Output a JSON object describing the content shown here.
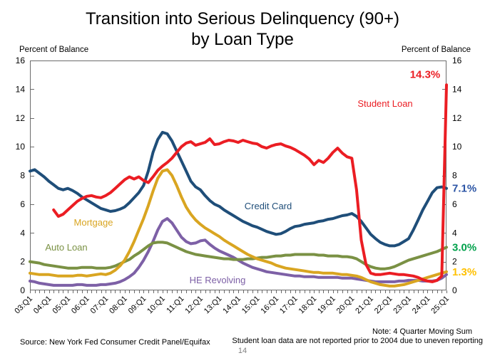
{
  "title": {
    "line1": "Transition into Serious Delinquency (90+)",
    "line2": "by Loan Type"
  },
  "axes": {
    "left_axis_title": "Percent of Balance",
    "right_axis_title": "Percent of Balance",
    "y_ticks": [
      0,
      2,
      4,
      6,
      8,
      10,
      12,
      14,
      16
    ],
    "x_tick_labels": [
      "03:Q1",
      "04:Q1",
      "05:Q1",
      "06:Q1",
      "07:Q1",
      "08:Q1",
      "09:Q1",
      "10:Q1",
      "11:Q1",
      "12:Q1",
      "13:Q1",
      "14:Q1",
      "15:Q1",
      "16:Q1",
      "17:Q1",
      "18:Q1",
      "19:Q1",
      "20:Q1",
      "21:Q1",
      "22:Q1",
      "23:Q1",
      "24:Q1",
      "25:Q1"
    ]
  },
  "chart_data": {
    "type": "line",
    "title": "Transition into Serious Delinquency (90+) by Loan Type",
    "ylabel": "Percent of Balance",
    "ylim": [
      0,
      16
    ],
    "x_start": "2003:Q1",
    "x_end": "2025:Q1",
    "frequency": "quarterly",
    "grid": false,
    "legend": "in-plot labels",
    "series": [
      {
        "name": "HE Revolving",
        "color": "#7d60a6",
        "end_label": null,
        "end_label_color": null,
        "values": [
          0.65,
          0.6,
          0.5,
          0.45,
          0.4,
          0.35,
          0.35,
          0.35,
          0.35,
          0.35,
          0.4,
          0.4,
          0.35,
          0.35,
          0.35,
          0.4,
          0.4,
          0.45,
          0.5,
          0.6,
          0.75,
          0.95,
          1.2,
          1.6,
          2.1,
          2.7,
          3.4,
          4.2,
          4.8,
          5.0,
          4.7,
          4.2,
          3.7,
          3.4,
          3.25,
          3.3,
          3.45,
          3.5,
          3.2,
          2.95,
          2.75,
          2.6,
          2.45,
          2.3,
          2.1,
          1.9,
          1.75,
          1.6,
          1.5,
          1.4,
          1.3,
          1.25,
          1.2,
          1.15,
          1.1,
          1.05,
          1.0,
          1.0,
          0.95,
          0.95,
          0.95,
          0.9,
          0.9,
          0.9,
          0.9,
          0.9,
          0.85,
          0.85,
          0.85,
          0.8,
          0.75,
          0.7,
          0.65,
          0.6,
          0.6,
          0.6,
          0.6,
          0.6,
          0.65,
          0.65,
          0.7,
          0.7,
          0.7,
          0.65,
          0.65,
          0.65,
          0.7,
          0.85,
          1.1
        ]
      },
      {
        "name": "Auto Loan",
        "color": "#7a9144",
        "end_label": "3.0%",
        "end_label_color": "#00a14b",
        "values": [
          2.0,
          1.95,
          1.9,
          1.8,
          1.75,
          1.7,
          1.65,
          1.6,
          1.55,
          1.55,
          1.55,
          1.6,
          1.6,
          1.6,
          1.55,
          1.55,
          1.55,
          1.6,
          1.7,
          1.85,
          2.0,
          2.15,
          2.4,
          2.6,
          2.85,
          3.1,
          3.3,
          3.35,
          3.35,
          3.3,
          3.15,
          3.0,
          2.85,
          2.7,
          2.6,
          2.5,
          2.45,
          2.4,
          2.35,
          2.3,
          2.25,
          2.2,
          2.2,
          2.15,
          2.15,
          2.15,
          2.2,
          2.2,
          2.25,
          2.3,
          2.3,
          2.35,
          2.4,
          2.4,
          2.45,
          2.45,
          2.5,
          2.5,
          2.5,
          2.5,
          2.5,
          2.45,
          2.45,
          2.4,
          2.4,
          2.4,
          2.35,
          2.35,
          2.3,
          2.2,
          2.0,
          1.8,
          1.65,
          1.55,
          1.5,
          1.5,
          1.55,
          1.65,
          1.8,
          1.95,
          2.1,
          2.2,
          2.3,
          2.4,
          2.5,
          2.6,
          2.7,
          2.85,
          3.0
        ]
      },
      {
        "name": "Mortgage",
        "color": "#d9a521",
        "end_label": "1.3%",
        "end_label_color": "#ffc000",
        "values": [
          1.2,
          1.15,
          1.1,
          1.1,
          1.1,
          1.05,
          1.0,
          1.0,
          1.0,
          1.0,
          1.05,
          1.05,
          1.0,
          1.05,
          1.1,
          1.15,
          1.1,
          1.2,
          1.4,
          1.7,
          2.1,
          2.7,
          3.4,
          4.2,
          5.0,
          5.9,
          6.9,
          7.8,
          8.3,
          8.4,
          8.0,
          7.3,
          6.5,
          5.8,
          5.3,
          4.9,
          4.6,
          4.35,
          4.15,
          3.95,
          3.75,
          3.5,
          3.3,
          3.1,
          2.9,
          2.7,
          2.5,
          2.35,
          2.2,
          2.1,
          2.0,
          1.9,
          1.75,
          1.65,
          1.55,
          1.5,
          1.45,
          1.4,
          1.35,
          1.3,
          1.25,
          1.25,
          1.2,
          1.2,
          1.2,
          1.15,
          1.1,
          1.1,
          1.05,
          1.0,
          0.9,
          0.75,
          0.6,
          0.5,
          0.4,
          0.35,
          0.3,
          0.3,
          0.35,
          0.4,
          0.5,
          0.6,
          0.7,
          0.8,
          0.9,
          1.0,
          1.1,
          1.2,
          1.3
        ]
      },
      {
        "name": "Credit Card",
        "color": "#1f4e79",
        "end_label": "7.1%",
        "end_label_color": "#2c55a5",
        "values": [
          8.3,
          8.4,
          8.15,
          7.9,
          7.6,
          7.35,
          7.1,
          7.0,
          7.1,
          6.95,
          6.75,
          6.5,
          6.3,
          6.1,
          5.9,
          5.7,
          5.6,
          5.5,
          5.55,
          5.65,
          5.8,
          6.1,
          6.45,
          6.8,
          7.3,
          8.3,
          9.6,
          10.5,
          11.0,
          10.9,
          10.4,
          9.7,
          9.0,
          8.3,
          7.6,
          7.2,
          7.0,
          6.6,
          6.25,
          6.0,
          5.85,
          5.6,
          5.4,
          5.2,
          5.0,
          4.8,
          4.65,
          4.5,
          4.4,
          4.25,
          4.1,
          4.0,
          3.9,
          3.95,
          4.1,
          4.3,
          4.45,
          4.5,
          4.6,
          4.65,
          4.7,
          4.8,
          4.85,
          4.95,
          5.0,
          5.1,
          5.2,
          5.25,
          5.35,
          5.15,
          4.8,
          4.35,
          3.9,
          3.6,
          3.35,
          3.2,
          3.1,
          3.1,
          3.2,
          3.4,
          3.6,
          4.2,
          4.9,
          5.6,
          6.2,
          6.8,
          7.15,
          7.2,
          7.1
        ]
      },
      {
        "name": "Student Loan",
        "color": "#eb1d23",
        "end_label": "14.3%",
        "end_label_color": "#eb1d23",
        "values": [
          null,
          null,
          null,
          null,
          null,
          5.6,
          5.15,
          5.3,
          5.6,
          5.9,
          6.2,
          6.4,
          6.55,
          6.6,
          6.5,
          6.45,
          6.6,
          6.8,
          7.1,
          7.4,
          7.7,
          7.9,
          7.75,
          7.9,
          7.65,
          7.5,
          7.9,
          8.35,
          8.65,
          8.9,
          9.2,
          9.6,
          10.0,
          10.25,
          10.35,
          10.1,
          10.2,
          10.3,
          10.55,
          10.15,
          10.2,
          10.35,
          10.45,
          10.4,
          10.3,
          10.45,
          10.35,
          10.25,
          10.2,
          10.0,
          9.9,
          10.05,
          10.15,
          10.2,
          10.05,
          9.95,
          9.8,
          9.6,
          9.4,
          9.15,
          8.75,
          9.05,
          8.9,
          9.2,
          9.6,
          9.9,
          9.55,
          9.3,
          9.2,
          7.0,
          3.5,
          1.8,
          1.2,
          1.1,
          1.1,
          1.15,
          1.2,
          1.15,
          1.1,
          1.1,
          1.05,
          1.0,
          0.9,
          0.75,
          0.65,
          0.6,
          0.7,
          1.0,
          14.3
        ]
      }
    ]
  },
  "footer": {
    "source": "Source: New York Fed Consumer Credit Panel/Equifax",
    "note1": "Note: 4 Quarter Moving Sum",
    "note2": "Student loan data are not reported prior to 2004 due to uneven reporting",
    "page_number": "14"
  }
}
